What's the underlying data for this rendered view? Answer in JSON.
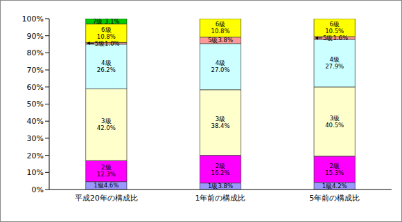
{
  "chart_data": {
    "type": "bar",
    "stacked": true,
    "data_labels": true,
    "grid": false,
    "categories": [
      "平成20年の構成比",
      "1年前の構成比",
      "5年前の構成比"
    ],
    "ylim": [
      0,
      100
    ],
    "yticks": [
      {
        "value": 0,
        "label": "0%"
      },
      {
        "value": 10,
        "label": "10%"
      },
      {
        "value": 20,
        "label": "20%"
      },
      {
        "value": 30,
        "label": "30%"
      },
      {
        "value": 40,
        "label": "40%"
      },
      {
        "value": 50,
        "label": "50%"
      },
      {
        "value": 60,
        "label": "60%"
      },
      {
        "value": 70,
        "label": "70%"
      },
      {
        "value": 80,
        "label": "80%"
      },
      {
        "value": 90,
        "label": "90%"
      },
      {
        "value": 100,
        "label": "100%"
      }
    ],
    "series": [
      {
        "name": "1級",
        "color": "#9999ff",
        "values": [
          4.6,
          3.8,
          4.2
        ],
        "value_labels": [
          "1級4.6%",
          "1級3.8%",
          "1級4.2%"
        ]
      },
      {
        "name": "2級",
        "color": "#ff00ff",
        "values": [
          12.3,
          16.2,
          15.3
        ],
        "value_labels": [
          "2級\n12.3%",
          "2級\n16.2%",
          "2級\n15.3%"
        ]
      },
      {
        "name": "3級",
        "color": "#ffffcc",
        "values": [
          42.0,
          38.4,
          40.5
        ],
        "value_labels": [
          "3級\n42.0%",
          "3級\n38.4%",
          "3級\n40.5%"
        ]
      },
      {
        "name": "4級",
        "color": "#ccffff",
        "values": [
          26.2,
          27.0,
          27.9
        ],
        "value_labels": [
          "4級\n26.2%",
          "4級\n27.0%",
          "4級\n27.9%"
        ]
      },
      {
        "name": "5級",
        "color": "#ff9999",
        "values": [
          1.0,
          3.8,
          1.6
        ],
        "value_labels": [
          "5級1.0%",
          "5級3.8%",
          "5級1.6%"
        ]
      },
      {
        "name": "6級",
        "color": "#ffff00",
        "values": [
          10.8,
          10.8,
          10.5
        ],
        "value_labels": [
          "6級\n10.8%",
          "6級\n10.8%",
          "6級\n10.5%"
        ]
      },
      {
        "name": "7級",
        "color": "#00cc00",
        "values": [
          3.1,
          null,
          null
        ],
        "value_labels": [
          "7級 3.1%",
          null,
          null
        ]
      }
    ]
  }
}
